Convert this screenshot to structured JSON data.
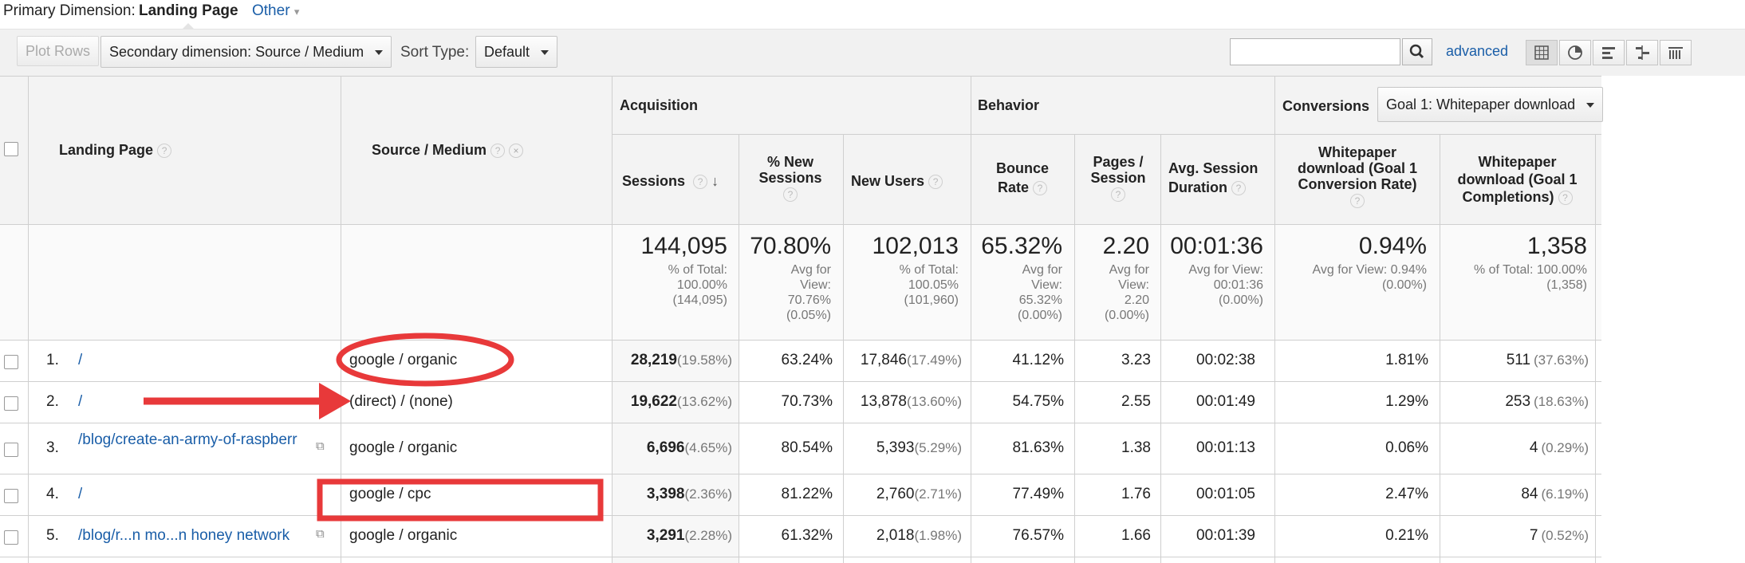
{
  "dimension_bar": {
    "label": "Primary Dimension:",
    "selected": "Landing Page",
    "other": "Other"
  },
  "toolbar": {
    "plot_rows": "Plot Rows",
    "secondary_dimension": "Secondary dimension: Source / Medium",
    "sort_type_label": "Sort Type:",
    "sort_type_value": "Default",
    "search_value": "",
    "advanced": "advanced"
  },
  "groups": {
    "acquisition": "Acquisition",
    "behavior": "Behavior",
    "conversions": "Conversions",
    "goal_select": "Goal 1: Whitepaper download"
  },
  "columns": {
    "landing_page": "Landing Page",
    "source_medium": "Source / Medium",
    "sessions": "Sessions",
    "new_sessions": "% New Sessions",
    "new_users": "New Users",
    "bounce_rate": "Bounce Rate",
    "pages_session": "Pages / Session",
    "avg_duration": "Avg. Session Duration",
    "conv_rate": "Whitepaper download (Goal 1 Conversion Rate)",
    "completions": "Whitepaper download (Goal 1 Completions)"
  },
  "totals": {
    "sessions": {
      "value": "144,095",
      "l1": "% of Total:",
      "l2": "100.00%",
      "l3": "(144,095)"
    },
    "new_sessions": {
      "value": "70.80%",
      "l1": "Avg for",
      "l2": "View:",
      "l3": "70.76%",
      "l4": "(0.05%)"
    },
    "new_users": {
      "value": "102,013",
      "l1": "% of Total:",
      "l2": "100.05%",
      "l3": "(101,960)"
    },
    "bounce_rate": {
      "value": "65.32%",
      "l1": "Avg for",
      "l2": "View:",
      "l3": "65.32%",
      "l4": "(0.00%)"
    },
    "pages_session": {
      "value": "2.20",
      "l1": "Avg for",
      "l2": "View:",
      "l3": "2.20",
      "l4": "(0.00%)"
    },
    "avg_duration": {
      "value": "00:01:36",
      "l1": "Avg for View:",
      "l2": "00:01:36",
      "l3": "(0.00%)"
    },
    "conv_rate": {
      "value": "0.94%",
      "l1": "Avg for View: 0.94%",
      "l2": "(0.00%)"
    },
    "completions": {
      "value": "1,358",
      "l1": "% of Total: 100.00%",
      "l2": "(1,358)"
    }
  },
  "rows": [
    {
      "idx": "1.",
      "page": "/",
      "source": "google / organic",
      "sessions": "28,219",
      "sessions_pct": "(19.58%)",
      "new_sessions": "63.24%",
      "new_users": "17,846",
      "new_users_pct": "(17.49%)",
      "bounce": "41.12%",
      "pages": "3.23",
      "duration": "00:02:38",
      "conv": "1.81%",
      "compl": "511",
      "compl_pct": "(37.63%)"
    },
    {
      "idx": "2.",
      "page": "/",
      "source": "(direct) / (none)",
      "sessions": "19,622",
      "sessions_pct": "(13.62%)",
      "new_sessions": "70.73%",
      "new_users": "13,878",
      "new_users_pct": "(13.60%)",
      "bounce": "54.75%",
      "pages": "2.55",
      "duration": "00:01:49",
      "conv": "1.29%",
      "compl": "253",
      "compl_pct": "(18.63%)"
    },
    {
      "idx": "3.",
      "page": "/blog/create-an-army-of-raspberr",
      "source": "google / organic",
      "sessions": "6,696",
      "sessions_pct": "(4.65%)",
      "new_sessions": "80.54%",
      "new_users": "5,393",
      "new_users_pct": "(5.29%)",
      "bounce": "81.63%",
      "pages": "1.38",
      "duration": "00:01:13",
      "conv": "0.06%",
      "compl": "4",
      "compl_pct": "(0.29%)"
    },
    {
      "idx": "4.",
      "page": "/",
      "source": "google / cpc",
      "sessions": "3,398",
      "sessions_pct": "(2.36%)",
      "new_sessions": "81.22%",
      "new_users": "2,760",
      "new_users_pct": "(2.71%)",
      "bounce": "77.49%",
      "pages": "1.76",
      "duration": "00:01:05",
      "conv": "2.47%",
      "compl": "84",
      "compl_pct": "(6.19%)"
    },
    {
      "idx": "5.",
      "page": "/blog/r...n mo...n honey network",
      "source": "google / organic",
      "sessions": "3,291",
      "sessions_pct": "(2.28%)",
      "new_sessions": "61.32%",
      "new_users": "2,018",
      "new_users_pct": "(1.98%)",
      "bounce": "76.57%",
      "pages": "1.66",
      "duration": "00:01:39",
      "conv": "0.21%",
      "compl": "7",
      "compl_pct": "(0.52%)"
    }
  ],
  "annotation_colors": {
    "highlight": "#e8393a"
  }
}
